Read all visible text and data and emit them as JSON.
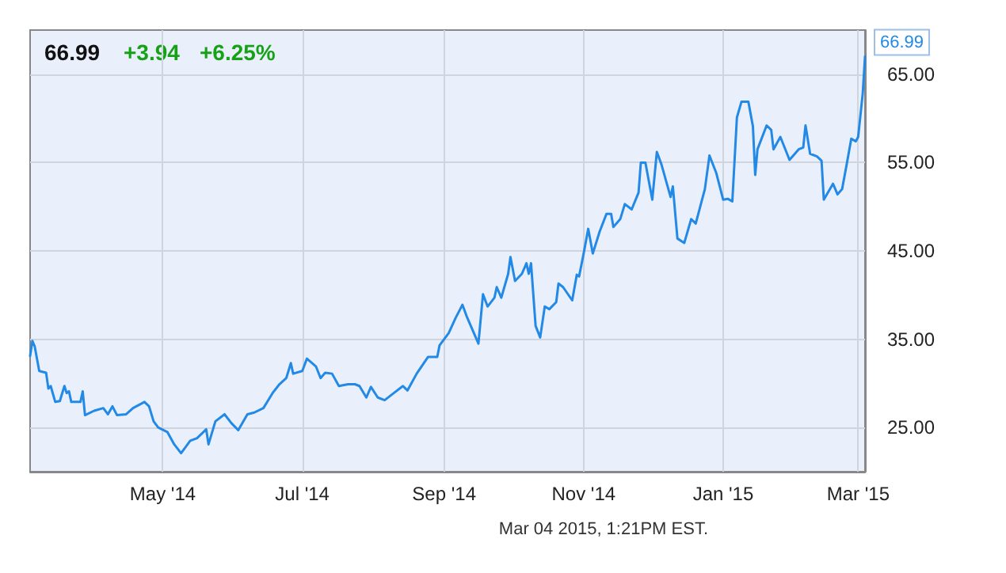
{
  "chart_data": {
    "type": "line",
    "title": "66.99",
    "annotations": [
      "+3.94",
      "+6.25%",
      "Mar 04 2015, 1:21PM EST.",
      {
        "text": "66.99",
        "x": "2015-03-04",
        "y": 66.99
      }
    ],
    "x": [
      "2014-03-04",
      "2014-03-05",
      "2014-03-06",
      "2014-03-08",
      "2014-03-11",
      "2014-03-12",
      "2014-03-13",
      "2014-03-15",
      "2014-03-17",
      "2014-03-19",
      "2014-03-20",
      "2014-03-21",
      "2014-03-22",
      "2014-03-26",
      "2014-03-27",
      "2014-03-28",
      "2014-04-01",
      "2014-04-05",
      "2014-04-07",
      "2014-04-09",
      "2014-04-11",
      "2014-04-15",
      "2014-04-18",
      "2014-04-23",
      "2014-04-25",
      "2014-04-27",
      "2014-04-29",
      "2014-05-03",
      "2014-05-06",
      "2014-05-09",
      "2014-05-13",
      "2014-05-16",
      "2014-05-20",
      "2014-05-21",
      "2014-05-24",
      "2014-05-28",
      "2014-05-31",
      "2014-06-03",
      "2014-06-07",
      "2014-06-10",
      "2014-06-14",
      "2014-06-18",
      "2014-06-21",
      "2014-06-24",
      "2014-06-26",
      "2014-06-27",
      "2014-07-01",
      "2014-07-03",
      "2014-07-07",
      "2014-07-09",
      "2014-07-11",
      "2014-07-14",
      "2014-07-17",
      "2014-07-21",
      "2014-07-24",
      "2014-07-26",
      "2014-07-29",
      "2014-07-31",
      "2014-08-03",
      "2014-08-06",
      "2014-08-10",
      "2014-08-14",
      "2014-08-16",
      "2014-08-20",
      "2014-08-25",
      "2014-08-29",
      "2014-08-30",
      "2014-09-03",
      "2014-09-06",
      "2014-09-09",
      "2014-09-11",
      "2014-09-16",
      "2014-09-18",
      "2014-09-20",
      "2014-09-23",
      "2014-09-24",
      "2014-09-26",
      "2014-09-29",
      "2014-09-30",
      "2014-10-02",
      "2014-10-05",
      "2014-10-07",
      "2014-10-08",
      "2014-10-09",
      "2014-10-11",
      "2014-10-13",
      "2014-10-15",
      "2014-10-17",
      "2014-10-20",
      "2014-10-21",
      "2014-10-23",
      "2014-10-27",
      "2014-10-29",
      "2014-10-30",
      "2014-11-01",
      "2014-11-03",
      "2014-11-05",
      "2014-11-08",
      "2014-11-11",
      "2014-11-13",
      "2014-11-14",
      "2014-11-17",
      "2014-11-19",
      "2014-11-22",
      "2014-11-25",
      "2014-11-26",
      "2014-11-28",
      "2014-12-01",
      "2014-12-03",
      "2014-12-05",
      "2014-12-09",
      "2014-12-10",
      "2014-12-12",
      "2014-12-15",
      "2014-12-18",
      "2014-12-20",
      "2014-12-24",
      "2014-12-26",
      "2014-12-29",
      "2015-01-01",
      "2015-01-03",
      "2015-01-05",
      "2015-01-07",
      "2015-01-09",
      "2015-01-12",
      "2015-01-14",
      "2015-01-15",
      "2015-01-16",
      "2015-01-20",
      "2015-01-22",
      "2015-01-23",
      "2015-01-26",
      "2015-01-30",
      "2015-02-03",
      "2015-02-05",
      "2015-02-06",
      "2015-02-08",
      "2015-02-11",
      "2015-02-13",
      "2015-02-14",
      "2015-02-18",
      "2015-02-20",
      "2015-02-22",
      "2015-02-24",
      "2015-02-26",
      "2015-02-28",
      "2015-03-01",
      "2015-03-03",
      "2015-03-04"
    ],
    "series": [
      {
        "color": "#2389e6",
        "values": [
          33.1,
          34.8,
          34.2,
          31.4,
          31.2,
          29.4,
          29.7,
          27.9,
          28.0,
          29.7,
          28.9,
          29.1,
          27.9,
          27.9,
          29.1,
          26.4,
          26.9,
          27.2,
          26.5,
          27.4,
          26.4,
          26.5,
          27.2,
          27.9,
          27.4,
          25.7,
          25.0,
          24.5,
          23.1,
          22.1,
          23.5,
          23.8,
          24.8,
          23.1,
          25.7,
          26.5,
          25.5,
          24.7,
          26.5,
          26.7,
          27.2,
          28.9,
          29.9,
          30.6,
          32.3,
          31.1,
          31.4,
          32.8,
          31.9,
          30.6,
          31.2,
          31.1,
          29.7,
          29.9,
          29.9,
          29.7,
          28.4,
          29.6,
          28.4,
          28.1,
          28.9,
          29.7,
          29.2,
          31.1,
          33.0,
          33.0,
          34.3,
          35.7,
          37.4,
          38.9,
          37.5,
          34.5,
          40.1,
          38.7,
          39.7,
          40.9,
          39.7,
          42.4,
          44.3,
          41.6,
          42.4,
          43.6,
          42.4,
          43.6,
          36.5,
          35.2,
          38.7,
          38.4,
          39.2,
          41.3,
          40.9,
          39.4,
          42.3,
          42.1,
          44.7,
          47.5,
          44.7,
          47.2,
          49.2,
          49.2,
          47.7,
          48.6,
          50.3,
          49.7,
          51.6,
          55.0,
          55.0,
          50.8,
          56.2,
          54.8,
          51.1,
          52.3,
          46.4,
          45.9,
          48.6,
          48.1,
          52.0,
          55.8,
          53.8,
          50.8,
          50.9,
          50.6,
          60.1,
          61.9,
          61.9,
          59.1,
          53.6,
          56.5,
          59.2,
          58.7,
          56.5,
          57.9,
          55.3,
          56.5,
          56.7,
          59.2,
          56.0,
          55.7,
          55.2,
          50.8,
          52.6,
          51.4,
          52.0,
          54.8,
          57.7,
          57.4,
          57.9,
          62.8,
          66.99
        ]
      }
    ],
    "xlim": [
      "2014-03-04",
      "2015-03-04"
    ],
    "xticks": [
      {
        "value": "2014-05-01",
        "label": "May '14"
      },
      {
        "value": "2014-07-01",
        "label": "Jul '14"
      },
      {
        "value": "2014-09-01",
        "label": "Sep '14"
      },
      {
        "value": "2014-11-01",
        "label": "Nov '14"
      },
      {
        "value": "2015-01-01",
        "label": "Jan '15"
      },
      {
        "value": "2015-03-01",
        "label": "Mar '15"
      }
    ],
    "ylim": [
      20,
      70
    ],
    "yticks": [
      {
        "value": 25,
        "label": "25.00"
      },
      {
        "value": 35,
        "label": "35.00"
      },
      {
        "value": 45,
        "label": "45.00"
      },
      {
        "value": 55,
        "label": "55.00"
      },
      {
        "value": 65,
        "label": "65.00"
      }
    ],
    "grid": true,
    "marker": "none",
    "line_style": "solid"
  }
}
